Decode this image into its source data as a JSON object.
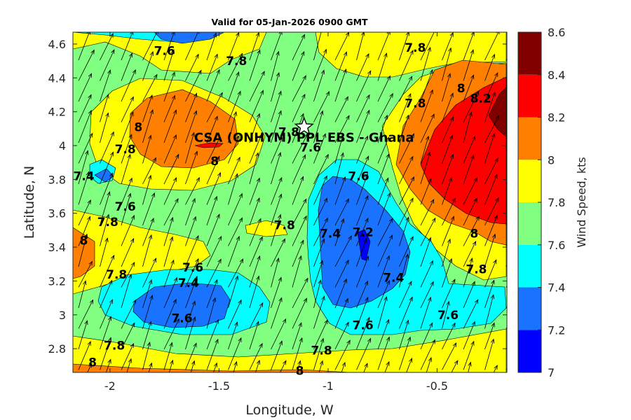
{
  "chart_data": {
    "type": "heatmap",
    "title": "Valid for 05-Jan-2026 0900 GMT",
    "xlabel": "Longitude, W",
    "ylabel": "Latitude, N",
    "colorbar_label": "Wind Speed, kts",
    "xlim": [
      -2.17,
      -0.18
    ],
    "ylim": [
      2.66,
      4.67
    ],
    "x_ticks": [
      -2,
      -1.5,
      -1,
      -0.5
    ],
    "x_tick_labels": [
      "-2",
      "-1.5",
      "-1",
      "-0.5"
    ],
    "y_ticks": [
      2.8,
      3,
      3.2,
      3.4,
      3.6,
      3.8,
      4,
      4.2,
      4.4,
      4.6
    ],
    "y_tick_labels": [
      "2.8",
      "3",
      "3.2",
      "3.4",
      "3.6",
      "3.8",
      "4",
      "4.2",
      "4.4",
      "4.6"
    ],
    "colorbar": {
      "levels": [
        7,
        7.2,
        7.4,
        7.6,
        7.8,
        8,
        8.2,
        8.4,
        8.6
      ],
      "tick_labels": [
        "7",
        "7.2",
        "7.4",
        "7.6",
        "7.8",
        "8",
        "8.2",
        "8.4",
        "8.6"
      ],
      "colors": [
        "#0000ff",
        "#1a73ff",
        "#00ffff",
        "#80ff80",
        "#ffff00",
        "#ff8000",
        "#ff0000",
        "#800000"
      ]
    },
    "station": {
      "label": "CSA (ONHYM) PPL EBS  - Ghana",
      "lon": -1.11,
      "lat": 4.11,
      "marker": "star"
    },
    "wind_vector_note": "southwest winds, arrows pointing north-northeast",
    "contour_labels": [
      {
        "text": "7.6",
        "lon": -1.75,
        "lat": 4.56
      },
      {
        "text": "7.8",
        "lon": -1.42,
        "lat": 4.5
      },
      {
        "text": "7.8",
        "lon": -0.6,
        "lat": 4.58
      },
      {
        "text": "8",
        "lon": -1.87,
        "lat": 4.11
      },
      {
        "text": "7.8",
        "lon": -1.93,
        "lat": 3.98
      },
      {
        "text": "8",
        "lon": -1.52,
        "lat": 3.91
      },
      {
        "text": "7.4",
        "lon": -2.12,
        "lat": 3.82
      },
      {
        "text": "7.6",
        "lon": -1.93,
        "lat": 3.64
      },
      {
        "text": "7.8",
        "lon": -2.01,
        "lat": 3.55
      },
      {
        "text": "8",
        "lon": -2.12,
        "lat": 3.44
      },
      {
        "text": "7.8",
        "lon": -1.18,
        "lat": 4.08
      },
      {
        "text": "7.6",
        "lon": -1.08,
        "lat": 3.99
      },
      {
        "text": "7.8",
        "lon": -1.2,
        "lat": 3.53
      },
      {
        "text": "7.4",
        "lon": -0.99,
        "lat": 3.48
      },
      {
        "text": "7.2",
        "lon": -0.84,
        "lat": 3.49
      },
      {
        "text": "7.6",
        "lon": -0.86,
        "lat": 3.82
      },
      {
        "text": "7.8",
        "lon": -0.6,
        "lat": 4.25
      },
      {
        "text": "8",
        "lon": -0.39,
        "lat": 4.34
      },
      {
        "text": "8.2",
        "lon": -0.3,
        "lat": 4.28
      },
      {
        "text": "8",
        "lon": -0.33,
        "lat": 3.48
      },
      {
        "text": "7.8",
        "lon": -0.32,
        "lat": 3.27
      },
      {
        "text": "7.6",
        "lon": -1.62,
        "lat": 3.28
      },
      {
        "text": "7.4",
        "lon": -1.64,
        "lat": 3.19
      },
      {
        "text": "7.8",
        "lon": -1.97,
        "lat": 3.24
      },
      {
        "text": "7.6",
        "lon": -1.67,
        "lat": 2.98
      },
      {
        "text": "7.4",
        "lon": -0.7,
        "lat": 3.22
      },
      {
        "text": "7.6",
        "lon": -0.45,
        "lat": 3.0
      },
      {
        "text": "7.6",
        "lon": -0.84,
        "lat": 2.94
      },
      {
        "text": "7.8",
        "lon": -1.98,
        "lat": 2.82
      },
      {
        "text": "8",
        "lon": -2.08,
        "lat": 2.72
      },
      {
        "text": "7.8",
        "lon": -1.03,
        "lat": 2.79
      },
      {
        "text": "8",
        "lon": -1.13,
        "lat": 2.67
      }
    ]
  }
}
